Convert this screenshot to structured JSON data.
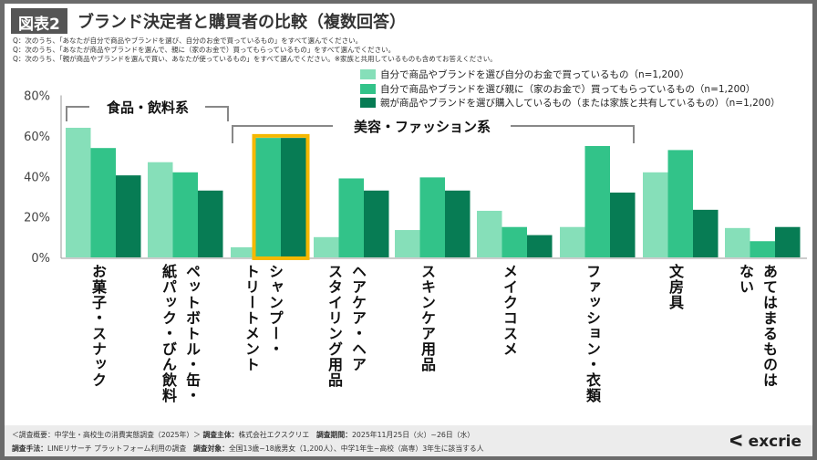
{
  "title_badge": "図表2",
  "title": "ブランド決定者と購買者の比較（複数回答）",
  "questions": [
    "Q：次のうち、「あなたが自分で商品やブランドを選び、自分のお金で買っているもの」をすべて選んでください。",
    "Q：次のうち、「あなたが商品やブランドを選んで、親に（家のお金で）買ってもらっているもの」をすべて選んでください。",
    "Q：次のうち、「親が商品やブランドを選んで買い、あなたが使っているもの」をすべて選んでください。※家族と共用しているものも含めてお答えください。"
  ],
  "group_labels": {
    "food": "食品・飲料系",
    "beauty": "美容・ファッション系"
  },
  "chart_data": {
    "type": "bar",
    "categories": [
      "お菓子・スナック",
      "ペットボトル・缶・\n紙パック・びん飲料",
      "シャンプー・\nトリートメント",
      "ヘアケア・ヘア\nスタイリング用品",
      "スキンケア用品",
      "メイクコスメ",
      "ファッション・衣類",
      "文房具",
      "あてはまるものは\nない"
    ],
    "series": [
      {
        "name": "自分で商品やブランドを選び自分のお金で買っているもの（n=1,200）",
        "color": "#86dfb9",
        "values": [
          64,
          47,
          5,
          10,
          13.5,
          23,
          15,
          42,
          14.5
        ]
      },
      {
        "name": "自分で商品やブランドを選び親に（家のお金で）買ってもらっているもの（n=1,200）",
        "color": "#32c389",
        "values": [
          54,
          42,
          59,
          39,
          39.5,
          15,
          55,
          53,
          8
        ]
      },
      {
        "name": "親が商品やブランドを選び購入しているもの（または家族と共有しているもの）（n=1,200）",
        "color": "#077c54",
        "values": [
          40.5,
          33,
          59,
          33,
          33,
          11,
          32,
          23.5,
          15
        ]
      }
    ],
    "yticks": [
      "0%",
      "20%",
      "40%",
      "60%",
      "80%"
    ],
    "ylim": [
      0,
      80
    ],
    "highlight_category": "シャンプー・\nトリートメント",
    "highlight_color": "#f5b800",
    "legend_placement": "top-right"
  },
  "footer": {
    "line1_a": "＜調査概要：中学生・高校生の消費実態調査（2025年）＞",
    "line1_b_label": "調査主体：",
    "line1_b": "株式会社エクスクリエ",
    "line1_c_label": "調査期間：",
    "line1_c": "2025年11月25日（火）~26日（水）",
    "line2_a_label": "調査手法：",
    "line2_a": "LINEリサーチ プラットフォーム利用の調査",
    "line2_b_label": "調査対象：",
    "line2_b": "全国13歳~18歳男女（1,200人）、中学1年生~高校（高専）3年生に該当する人"
  },
  "logo": "excrie"
}
